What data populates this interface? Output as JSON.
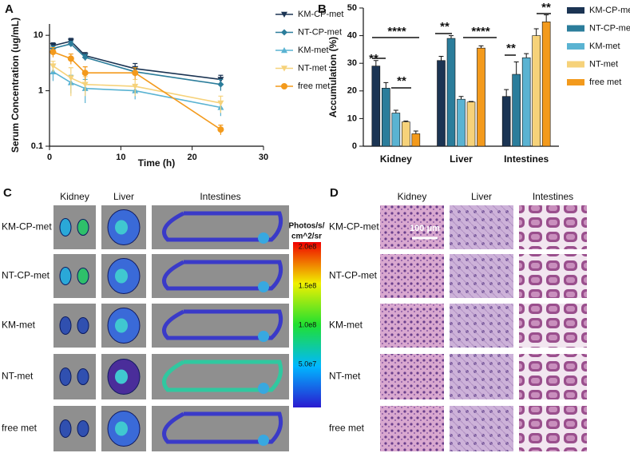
{
  "chart_data": [
    {
      "type": "line",
      "panel": "A",
      "ylabel": "Serum Concentration (ug/mL)",
      "xlabel": "Time (h)",
      "log_y": true,
      "x": [
        0.5,
        3,
        5,
        12,
        24
      ],
      "xlim": [
        0,
        30
      ],
      "xticks": [
        0,
        10,
        20,
        30
      ],
      "ylim": [
        0.1,
        16
      ],
      "yticks": [
        0.1,
        1,
        10
      ],
      "legend": "right",
      "series": [
        {
          "name": "KM-CP-met",
          "color": "#1b3453",
          "marker": "triangle-down",
          "values": [
            6.5,
            7.8,
            4.3,
            2.5,
            1.6
          ],
          "errors": [
            0.8,
            1.0,
            0.6,
            0.6,
            0.3
          ]
        },
        {
          "name": "NT-CP-met",
          "color": "#2b7d9b",
          "marker": "diamond",
          "values": [
            5.8,
            7.0,
            4.0,
            2.2,
            1.3
          ],
          "errors": [
            0.6,
            0.8,
            0.5,
            0.4,
            0.3
          ]
        },
        {
          "name": "KM-met",
          "color": "#5ab3d2",
          "marker": "triangle-up",
          "values": [
            2.2,
            1.4,
            1.1,
            1.0,
            0.5
          ],
          "errors": [
            0.7,
            0.5,
            0.5,
            0.3,
            0.15
          ]
        },
        {
          "name": "NT-met",
          "color": "#f6d27a",
          "marker": "triangle-down",
          "values": [
            2.8,
            1.7,
            1.3,
            1.2,
            0.6
          ],
          "errors": [
            0.6,
            0.9,
            0.5,
            0.4,
            0.2
          ]
        },
        {
          "name": "free met",
          "color": "#f39a1c",
          "marker": "circle",
          "values": [
            5.0,
            3.8,
            2.1,
            2.1,
            0.2
          ],
          "errors": [
            1.0,
            0.8,
            0.6,
            0.5,
            0.04
          ]
        }
      ]
    },
    {
      "type": "bar",
      "panel": "B",
      "ylabel": "Accumulation (%)",
      "categories": [
        "Kidney",
        "Liver",
        "Intestines"
      ],
      "ylim": [
        0,
        50
      ],
      "yticks": [
        0,
        10,
        20,
        30,
        40,
        50
      ],
      "legend": "right",
      "series": [
        {
          "name": "KM-CP-met",
          "color": "#1b3453",
          "values": [
            29,
            31,
            18
          ],
          "errors": [
            2,
            1.5,
            2.5
          ]
        },
        {
          "name": "NT-CP-met",
          "color": "#2b7d9b",
          "values": [
            21,
            39,
            26
          ],
          "errors": [
            2,
            1,
            4.5
          ]
        },
        {
          "name": "KM-met",
          "color": "#5ab3d2",
          "values": [
            12,
            17,
            32
          ],
          "errors": [
            1,
            1,
            1.5
          ]
        },
        {
          "name": "NT-met",
          "color": "#f6d27a",
          "values": [
            8.8,
            16,
            40
          ],
          "errors": [
            0.3,
            0.2,
            2.5
          ]
        },
        {
          "name": "free met",
          "color": "#f39a1c",
          "values": [
            4.5,
            35.5,
            45
          ],
          "errors": [
            1,
            0.8,
            2.5
          ]
        }
      ],
      "annotations": [
        "**",
        "****",
        "**",
        "**",
        "****",
        "**",
        "**"
      ]
    }
  ],
  "panel_c": {
    "label": "C",
    "columns": [
      "Kidney",
      "Liver",
      "Intestines"
    ],
    "rows": [
      "KM-CP-met",
      "NT-CP-met",
      "KM-met",
      "NT-met",
      "free met"
    ],
    "colorbar": {
      "title": [
        "Photos/s/",
        "cm^2/sr"
      ],
      "ticks": [
        "2.0e8",
        "1.5e8",
        "1.0e8",
        "5.0e7"
      ]
    }
  },
  "panel_d": {
    "label": "D",
    "columns": [
      "Kidney",
      "Liver",
      "Intestines"
    ],
    "rows": [
      "KM-CP-met",
      "NT-CP-met",
      "KM-met",
      "NT-met",
      "free met"
    ],
    "scale_bar": "100 μm"
  }
}
